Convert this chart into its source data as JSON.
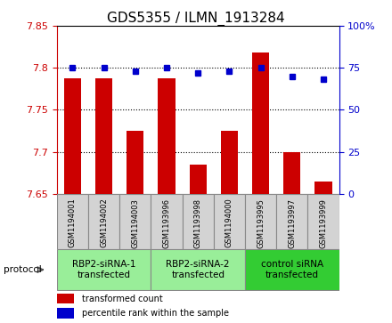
{
  "title": "GDS5355 / ILMN_1913284",
  "samples": [
    "GSM1194001",
    "GSM1194002",
    "GSM1194003",
    "GSM1193996",
    "GSM1193998",
    "GSM1194000",
    "GSM1193995",
    "GSM1193997",
    "GSM1193999"
  ],
  "red_values": [
    7.787,
    7.787,
    7.725,
    7.787,
    7.685,
    7.725,
    7.818,
    7.7,
    7.665
  ],
  "blue_values": [
    75,
    75,
    73,
    75,
    72,
    73,
    75,
    70,
    68
  ],
  "ylim_left": [
    7.65,
    7.85
  ],
  "ylim_right": [
    0,
    100
  ],
  "yticks_left": [
    7.65,
    7.7,
    7.75,
    7.8,
    7.85
  ],
  "yticks_right": [
    0,
    25,
    50,
    75,
    100
  ],
  "red_color": "#cc0000",
  "blue_color": "#0000cc",
  "bar_width": 0.55,
  "group_info": [
    {
      "start": 0,
      "end": 2,
      "label": "RBP2-siRNA-1\ntransfected",
      "color": "#99ee99"
    },
    {
      "start": 3,
      "end": 5,
      "label": "RBP2-siRNA-2\ntransfected",
      "color": "#99ee99"
    },
    {
      "start": 6,
      "end": 8,
      "label": "control siRNA\ntransfected",
      "color": "#33cc33"
    }
  ],
  "protocol_label": "protocol",
  "legend_red": "transformed count",
  "legend_blue": "percentile rank within the sample",
  "label_area_color": "#d3d3d3",
  "title_fontsize": 11,
  "tick_fontsize": 8,
  "sample_fontsize": 6,
  "group_fontsize": 7.5,
  "legend_fontsize": 7
}
